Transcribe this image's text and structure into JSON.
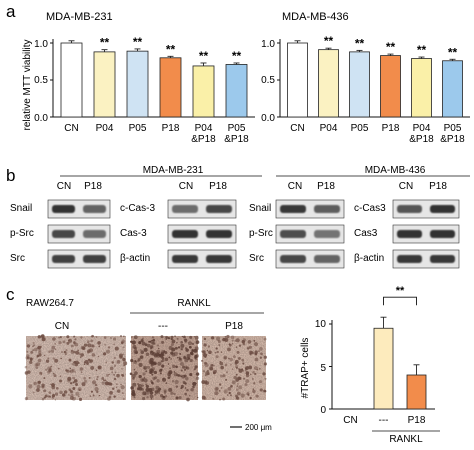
{
  "panel_labels": {
    "a": "a",
    "b": "b",
    "c": "c"
  },
  "colors": {
    "CN": "#ffffff",
    "P04": "#fbf2c2",
    "P05": "#cfe3f3",
    "P18": "#f28c4b",
    "P04P18": "#faf0a8",
    "P05P18": "#9cc9ec",
    "RANKL_bar": "#fdebbd",
    "P18_bar": "#f28c4b"
  },
  "chart_data": [
    {
      "type": "bar",
      "title": "MDA-MB-231",
      "ylabel": "relative MTT viability",
      "ylim": [
        0,
        1.0
      ],
      "yticks": [
        "0.0",
        "0.5",
        "1.0"
      ],
      "categories": [
        [
          "CN"
        ],
        [
          "P04"
        ],
        [
          "P05"
        ],
        [
          "P18"
        ],
        [
          "P04",
          "&P18"
        ],
        [
          "P05",
          "&P18"
        ]
      ],
      "values": [
        1.0,
        0.88,
        0.89,
        0.8,
        0.69,
        0.71
      ],
      "errors": [
        0.03,
        0.03,
        0.03,
        0.02,
        0.04,
        0.02
      ],
      "annotations": [
        "",
        "**",
        "**",
        "**",
        "**",
        "**"
      ],
      "color_keys": [
        "CN",
        "P04",
        "P05",
        "P18",
        "P04P18",
        "P05P18"
      ]
    },
    {
      "type": "bar",
      "title": "MDA-MB-436",
      "ylabel": "",
      "ylim": [
        0,
        1.0
      ],
      "yticks": [
        "0.0",
        "0.5",
        "1.0"
      ],
      "categories": [
        [
          "CN"
        ],
        [
          "P04"
        ],
        [
          "P05"
        ],
        [
          "P18"
        ],
        [
          "P04",
          "&P18"
        ],
        [
          "P05",
          "&P18"
        ]
      ],
      "values": [
        1.0,
        0.91,
        0.88,
        0.83,
        0.79,
        0.76
      ],
      "errors": [
        0.03,
        0.02,
        0.02,
        0.02,
        0.02,
        0.02
      ],
      "annotations": [
        "",
        "**",
        "**",
        "**",
        "**",
        "**"
      ],
      "color_keys": [
        "CN",
        "P04",
        "P05",
        "P18",
        "P04P18",
        "P05P18"
      ]
    },
    {
      "type": "bar",
      "title": "",
      "ylabel": "#TRAP+ cells",
      "ylim": [
        0,
        10
      ],
      "yticks": [
        "0",
        "5",
        "10"
      ],
      "categories": [
        [
          "CN"
        ],
        [
          "---"
        ],
        [
          "P18"
        ]
      ],
      "group_label": "RANKL",
      "values": [
        0,
        9.5,
        4.0
      ],
      "errors": [
        0,
        1.3,
        1.2
      ],
      "significance": {
        "label": "**",
        "from": 1,
        "to": 2
      },
      "color_keys": [
        "CN",
        "RANKL_bar",
        "P18_bar"
      ]
    }
  ],
  "western_blot": {
    "left": {
      "title": "MDA-MB-231",
      "lanes": [
        "CN",
        "P18"
      ],
      "rows_a": [
        "Snail",
        "p-Src",
        "Src"
      ],
      "rows_b": [
        "c-Cas-3",
        "Cas-3",
        "β-actin"
      ]
    },
    "right": {
      "title": "MDA-MB-436",
      "lanes": [
        "CN",
        "P18"
      ],
      "rows_a": [
        "Snail",
        "p-Src",
        "Src"
      ],
      "rows_b": [
        "c-Cas3",
        "Cas3",
        "β-actin"
      ]
    }
  },
  "micrographs": {
    "cell_line": "RAW264.7",
    "group_label": "RANKL",
    "images": [
      "CN",
      "---",
      "P18"
    ],
    "scale_bar": "200 μm"
  }
}
